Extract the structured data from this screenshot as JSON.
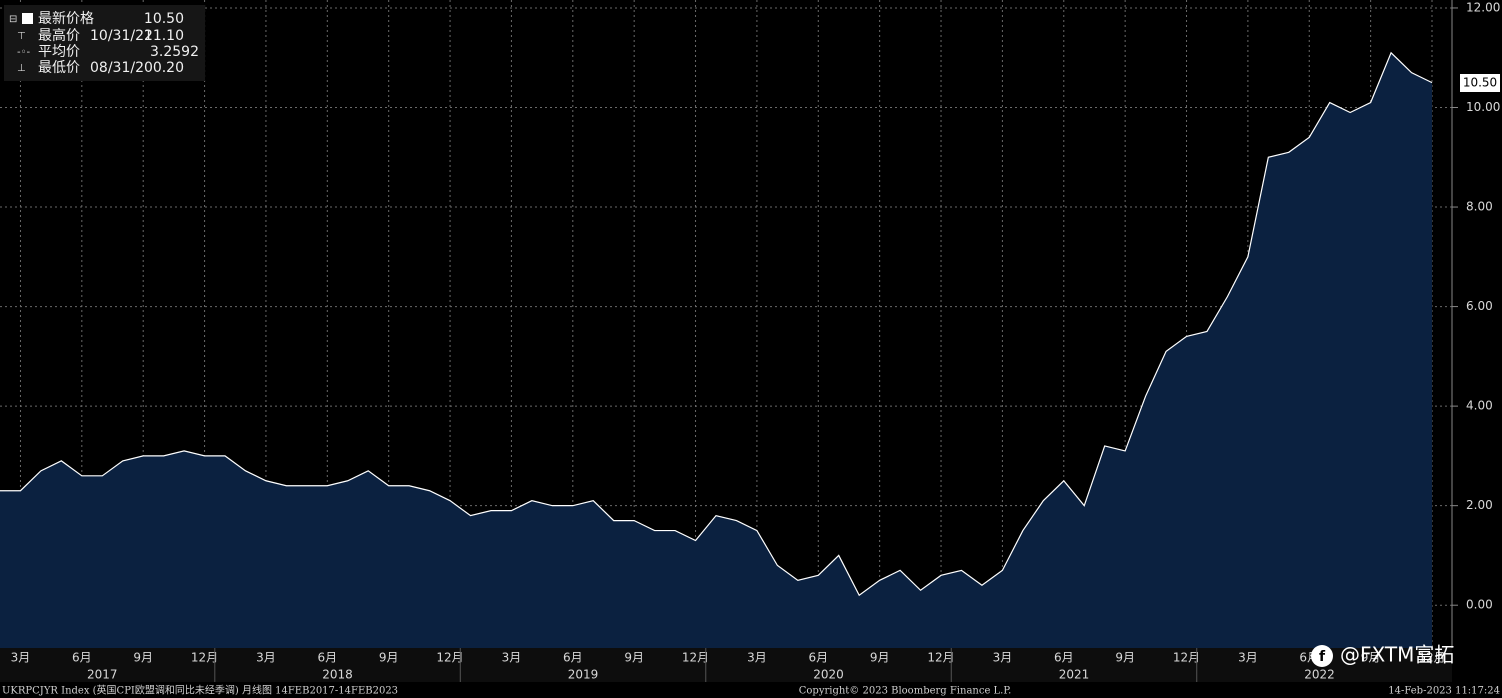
{
  "chart_data": {
    "type": "area",
    "categories": [
      null,
      "3月",
      null,
      null,
      "6月",
      null,
      null,
      "9月",
      null,
      null,
      "12月",
      null,
      null,
      "3月",
      null,
      null,
      "6月",
      null,
      null,
      "9月",
      null,
      null,
      "12月",
      null,
      null,
      "3月",
      null,
      null,
      "6月",
      null,
      null,
      "9月",
      null,
      null,
      "12月",
      null,
      null,
      "3月",
      null,
      null,
      "6月",
      null,
      null,
      "9月",
      null,
      null,
      "12月",
      null,
      null,
      "3月",
      null,
      null,
      "6月",
      null,
      null,
      "9月",
      null,
      null,
      "12月",
      null,
      null,
      "3月",
      null,
      null,
      "6月",
      null,
      null,
      "9月",
      null,
      null,
      "12月"
    ],
    "year_labels": [
      "2017",
      "2018",
      "2019",
      "2020",
      "2021",
      "2022"
    ],
    "series": [
      {
        "name": "UKRPCJYR Index",
        "color": "#ffffff",
        "fill": "#0b2140",
        "values": [
          2.3,
          2.3,
          2.7,
          2.9,
          2.6,
          2.6,
          2.9,
          3.0,
          3.0,
          3.1,
          3.0,
          3.0,
          2.7,
          2.5,
          2.4,
          2.4,
          2.4,
          2.5,
          2.7,
          2.4,
          2.4,
          2.3,
          2.1,
          1.8,
          1.9,
          1.9,
          2.1,
          2.0,
          2.0,
          2.1,
          1.7,
          1.7,
          1.5,
          1.5,
          1.3,
          1.8,
          1.7,
          1.5,
          0.8,
          0.5,
          0.6,
          1.0,
          0.2,
          0.5,
          0.7,
          0.3,
          0.6,
          0.7,
          0.4,
          0.7,
          1.5,
          2.1,
          2.5,
          2.0,
          3.2,
          3.1,
          4.2,
          5.1,
          5.4,
          5.5,
          6.2,
          7.0,
          9.0,
          9.1,
          9.4,
          10.1,
          9.9,
          10.1,
          11.1,
          10.7,
          10.5
        ]
      }
    ],
    "ylim": [
      -0.86,
      12.16
    ],
    "yticks": [
      {
        "value": 0,
        "label": "0.00"
      },
      {
        "value": 2,
        "label": "2.00"
      },
      {
        "value": 4,
        "label": "4.00"
      },
      {
        "value": 6,
        "label": "6.00"
      },
      {
        "value": 8,
        "label": "8.00"
      },
      {
        "value": 10,
        "label": "10.00"
      },
      {
        "value": 12,
        "label": "12.00"
      }
    ],
    "grid": true
  },
  "legend": {
    "rows": [
      {
        "label": "最新价格",
        "value": "10.50"
      },
      {
        "label": "最高价",
        "date": "10/31/22",
        "value": "11.10"
      },
      {
        "label": "平均价",
        "value": "3.2592"
      },
      {
        "label": "最低价",
        "date": "08/31/20",
        "value": "0.20"
      }
    ]
  },
  "footer": {
    "left": "UKRPCJYR Index (英国CPI欧盟调和同比未经季调)  月线图 14FEB2017-14FEB2023",
    "center": "Copyright© 2023 Bloomberg Finance L.P.",
    "right": "14-Feb-2023 11:17:24"
  },
  "watermark": "@FXTM富拓"
}
